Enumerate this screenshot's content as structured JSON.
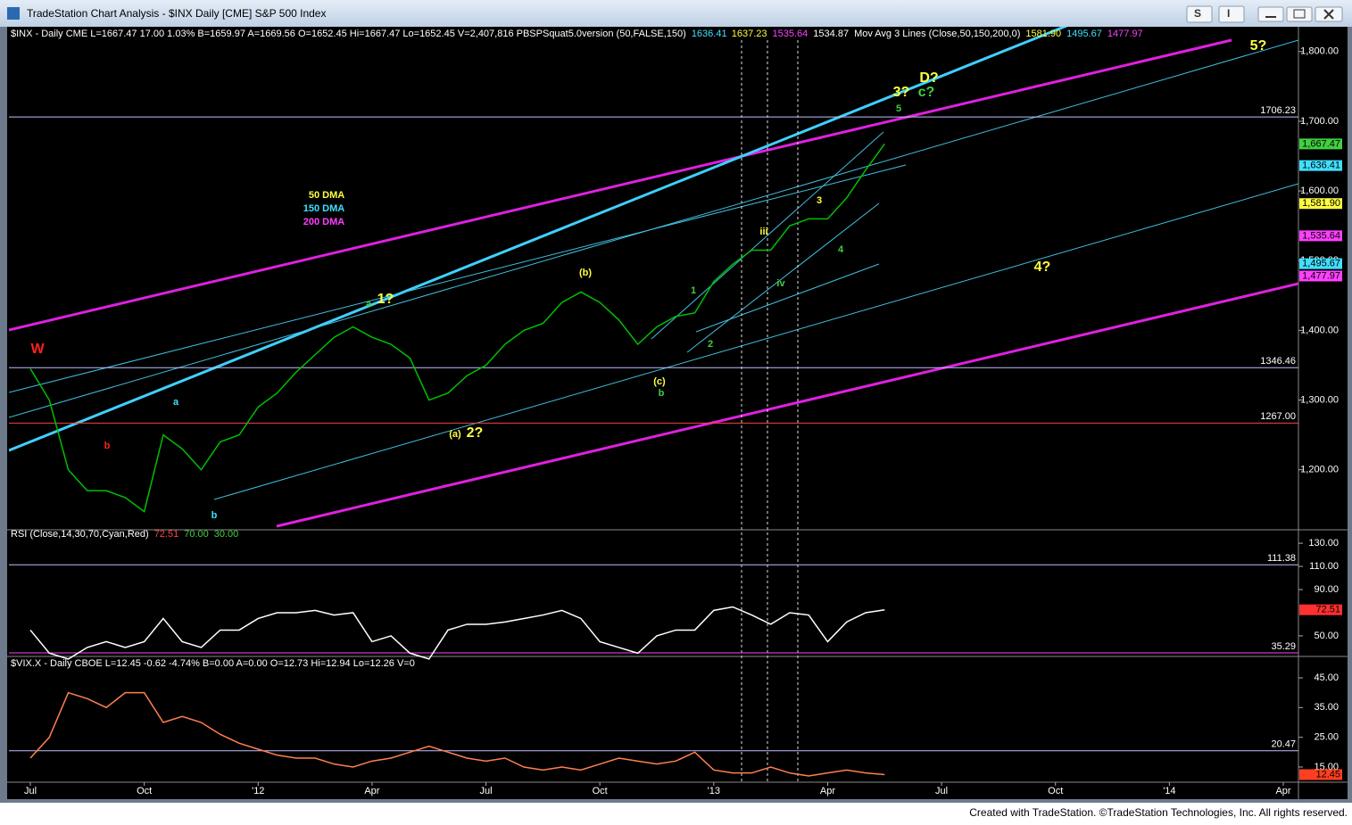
{
  "window": {
    "title": "TradeStation Chart Analysis - $INX Daily [CME] S&P 500 Index",
    "buttons": [
      "S",
      "I"
    ]
  },
  "footer": "Created with TradeStation. ©TradeStation Technologies, Inc. All rights reserved.",
  "chart_data": [
    {
      "type": "line",
      "color": "#00c000",
      "header": [
        {
          "text": "$INX - Daily  CME  L=1667.47  17.00  1.03%  B=1659.97  A=1669.56  O=1652.45  Hi=1667.47  Lo=1652.45  V=2,407,816  PBSPSquat5.0version (50,FALSE,150)",
          "color": "#ffffff"
        },
        {
          "text": "1636.41",
          "color": "#40e0ff"
        },
        {
          "text": "1637.23",
          "color": "#ffff40"
        },
        {
          "text": "1535.64",
          "color": "#ff40ff"
        },
        {
          "text": "1534.87",
          "color": "#ffffff"
        },
        {
          "text": "Mov Avg 3 Lines (Close,50,150,200,0)",
          "color": "#ffffff"
        },
        {
          "text": "1581.90",
          "color": "#ffff40"
        },
        {
          "text": "1495.67",
          "color": "#40e0ff"
        },
        {
          "text": "1477.97",
          "color": "#ff40ff"
        }
      ],
      "values": [
        1345,
        1300,
        1200,
        1170,
        1170,
        1160,
        1140,
        1250,
        1230,
        1200,
        1240,
        1250,
        1290,
        1310,
        1340,
        1365,
        1390,
        1405,
        1390,
        1380,
        1360,
        1300,
        1310,
        1335,
        1350,
        1380,
        1400,
        1410,
        1440,
        1455,
        1440,
        1415,
        1380,
        1405,
        1420,
        1425,
        1470,
        1495,
        1515,
        1515,
        1550,
        1560,
        1560,
        1590,
        1630,
        1667.47,
        null,
        null,
        null,
        null,
        null,
        null,
        null,
        null,
        null,
        null,
        null,
        null,
        null,
        null,
        null,
        null,
        null,
        null,
        null,
        null,
        null,
        null
      ],
      "ylim": [
        1119,
        1833
      ],
      "yticks": [
        {
          "value": 1200,
          "label": "1,200.00"
        },
        {
          "value": 1300,
          "label": "1,300.00"
        },
        {
          "value": 1400,
          "label": "1,400.00"
        },
        {
          "value": 1500,
          "label": "1,500.00"
        },
        {
          "value": 1600,
          "label": "1,600.00"
        },
        {
          "value": 1700,
          "label": "1,700.00"
        },
        {
          "value": 1800,
          "label": "1,800.00"
        }
      ],
      "levels": [
        {
          "value": 1706.23,
          "label": "1706.23",
          "color": "#c0c0ff"
        },
        {
          "value": 1346.46,
          "label": "1346.46",
          "color": "#c0c0ff"
        },
        {
          "value": 1267,
          "label": "1267.00",
          "color": "#ff4040"
        }
      ],
      "markers": [
        {
          "value": 1667.47,
          "label": "1,667.47",
          "color": "#40d040"
        },
        {
          "value": 1636.41,
          "label": "1,636.41",
          "color": "#40e0ff"
        },
        {
          "value": 1581.9,
          "label": "1,581.90",
          "color": "#ffff40"
        },
        {
          "value": 1535.64,
          "label": "1,535.64",
          "color": "#ff40ff"
        },
        {
          "value": 1495.67,
          "label": "1,495.67",
          "color": "#40e0ff"
        },
        {
          "value": 1477.97,
          "label": "1,477.97",
          "color": "#ff40ff"
        }
      ],
      "annotations": [
        {
          "text": "W",
          "color": "#ff2020"
        },
        {
          "text": "a",
          "color": "#40e0ff"
        },
        {
          "text": "b",
          "color": "#40e0ff"
        },
        {
          "text": "b",
          "color": "#ff2020"
        },
        {
          "text": "a",
          "color": "#40d040"
        },
        {
          "text": "1?",
          "color": "#ffff40"
        },
        {
          "text": "2?",
          "color": "#ffff40"
        },
        {
          "text": "(a)",
          "color": "#ffff40"
        },
        {
          "text": "(b)",
          "color": "#ffff40"
        },
        {
          "text": "b",
          "color": "#40d040"
        },
        {
          "text": "(c)",
          "color": "#ffff40"
        },
        {
          "text": "1",
          "color": "#40d040"
        },
        {
          "text": "2",
          "color": "#40d040"
        },
        {
          "text": "iii",
          "color": "#ffff40"
        },
        {
          "text": "iv",
          "color": "#40d040"
        },
        {
          "text": "3",
          "color": "#ffff40"
        },
        {
          "text": "4",
          "color": "#40d040"
        },
        {
          "text": "5",
          "color": "#40d040"
        },
        {
          "text": "3?",
          "color": "#ffff40"
        },
        {
          "text": "c?",
          "color": "#40d040"
        },
        {
          "text": "D?",
          "color": "#ffff40"
        },
        {
          "text": "4?",
          "color": "#ffff40"
        },
        {
          "text": "5?",
          "color": "#ffff40"
        },
        {
          "text": "50 DMA",
          "color": "#ffff40"
        },
        {
          "text": "150 DMA",
          "color": "#40e0ff"
        },
        {
          "text": "200 DMA",
          "color": "#ff40ff"
        }
      ]
    },
    {
      "type": "line",
      "color": "#ffffff",
      "header": [
        {
          "text": "RSI (Close,14,30,70,Cyan,Red)",
          "color": "#ffffff"
        },
        {
          "text": "72.51",
          "color": "#ff4040"
        },
        {
          "text": "70.00",
          "color": "#40d040"
        },
        {
          "text": "30.00",
          "color": "#40d040"
        }
      ],
      "values": [
        55,
        35,
        30,
        40,
        45,
        40,
        45,
        65,
        45,
        40,
        55,
        55,
        65,
        70,
        70,
        72,
        68,
        70,
        45,
        50,
        35,
        30,
        55,
        60,
        60,
        62,
        65,
        68,
        72,
        65,
        45,
        40,
        35,
        50,
        55,
        55,
        72,
        75,
        68,
        60,
        70,
        68,
        45,
        62,
        70,
        72.51,
        null,
        null,
        null,
        null,
        null,
        null,
        null,
        null,
        null,
        null,
        null,
        null,
        null,
        null,
        null,
        null,
        null,
        null,
        null,
        null,
        null,
        null
      ],
      "ylim": [
        33,
        137
      ],
      "yticks": [
        {
          "value": 50,
          "label": "50.00"
        },
        {
          "value": 90,
          "label": "90.00"
        },
        {
          "value": 110,
          "label": "110.00"
        },
        {
          "value": 130,
          "label": "130.00"
        }
      ],
      "levels": [
        {
          "value": 111.38,
          "label": "111.38",
          "color": "#c0c0ff"
        },
        {
          "value": 35.29,
          "label": "35.29",
          "color": "#ff40ff"
        }
      ],
      "markers": [
        {
          "value": 72.51,
          "label": "72.51",
          "color": "#ff3030"
        }
      ],
      "annotations": []
    },
    {
      "type": "line",
      "color": "#ff8050",
      "header": [
        {
          "text": "$VIX.X - Daily  CBOE  L=12.45  -0.62  -4.74%  B=0.00  A=0.00  O=12.73  Hi=12.94  Lo=12.26  V=0",
          "color": "#ffffff"
        }
      ],
      "categories": [
        "Jul",
        null,
        null,
        null,
        null,
        null,
        "Oct",
        null,
        null,
        null,
        null,
        null,
        "'12",
        null,
        null,
        null,
        null,
        null,
        "Apr",
        null,
        null,
        null,
        null,
        null,
        "Jul",
        null,
        null,
        null,
        null,
        null,
        "Oct",
        null,
        null,
        null,
        null,
        null,
        "'13",
        null,
        null,
        null,
        null,
        null,
        "Apr",
        null,
        null,
        null,
        null,
        null,
        "Jul",
        null,
        null,
        null,
        null,
        null,
        "Oct",
        null,
        null,
        null,
        null,
        null,
        "'14",
        null,
        null,
        null,
        null,
        null,
        "Apr",
        null
      ],
      "values": [
        18,
        25,
        40,
        38,
        35,
        40,
        40,
        30,
        32,
        30,
        26,
        23,
        21,
        19,
        18,
        18,
        16,
        15,
        17,
        18,
        20,
        22,
        20,
        18,
        17,
        18,
        15,
        14,
        15,
        14,
        16,
        18,
        17,
        16,
        17,
        20,
        14,
        13,
        13,
        15,
        13,
        12,
        13,
        14,
        13,
        12.45,
        null,
        null,
        null,
        null,
        null,
        null,
        null,
        null,
        null,
        null,
        null,
        null,
        null,
        null,
        null,
        null,
        null,
        null,
        null,
        null,
        null,
        null
      ],
      "ylim": [
        10.5,
        51.6
      ],
      "yticks": [
        {
          "value": 15,
          "label": "15.00"
        },
        {
          "value": 25,
          "label": "25.00"
        },
        {
          "value": 35,
          "label": "35.00"
        },
        {
          "value": 45,
          "label": "45.00"
        }
      ],
      "levels": [
        {
          "value": 20.47,
          "label": "20.47",
          "color": "#c0c0ff"
        }
      ],
      "markers": [
        {
          "value": 12.45,
          "label": "12.45",
          "color": "#ff4020"
        }
      ],
      "annotations": []
    }
  ]
}
